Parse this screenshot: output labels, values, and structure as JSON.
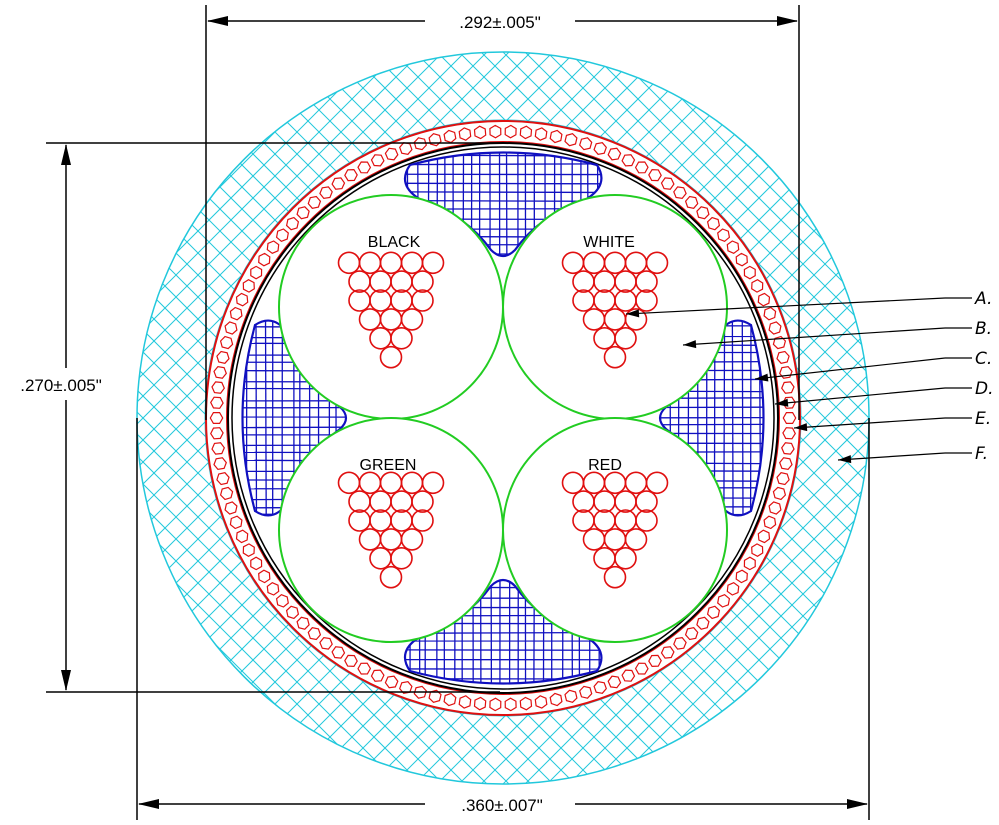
{
  "dimensions": {
    "top_width": ".292±.005\"",
    "left_height": ".270±.005\"",
    "bottom_width": ".360±.007\""
  },
  "conductors": [
    {
      "label": "BLACK"
    },
    {
      "label": "WHITE"
    },
    {
      "label": "GREEN"
    },
    {
      "label": "RED"
    }
  ],
  "callouts": [
    "A.",
    "B.",
    "C.",
    "D.",
    "E.",
    "F."
  ],
  "colors": {
    "jacket": "#22c8dc",
    "braid_shield": "#e01010",
    "strand": "#e01010",
    "insulation": "#22cc22",
    "filler": "#1010c0",
    "line": "#000000"
  }
}
